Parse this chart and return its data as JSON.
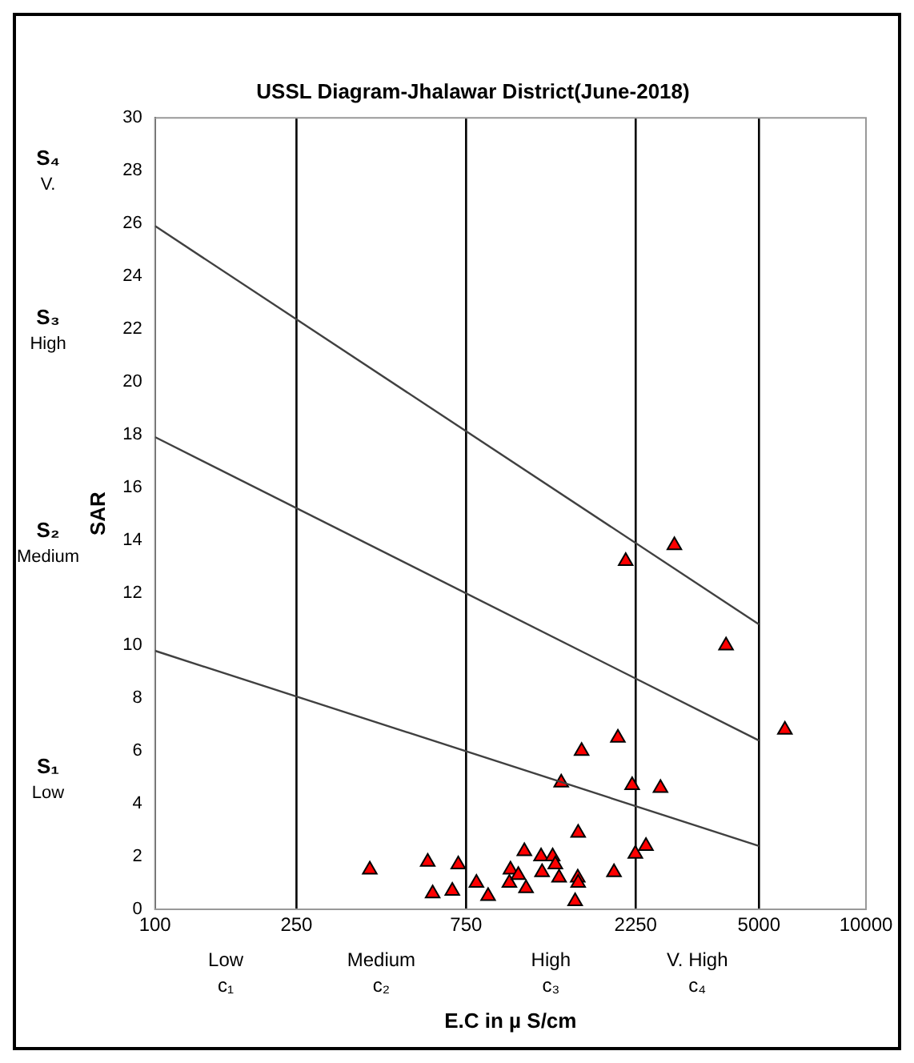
{
  "chart_data": {
    "type": "scatter",
    "title": "USSL Diagram-Jhalawar District(June-2018)",
    "xlabel": "E.C in µ S/cm",
    "ylabel": "SAR",
    "annotations": [
      "S₄ V.",
      "S₃ High",
      "S₂ Medium",
      "S₁ Low",
      "Low c₁",
      "Medium c₂",
      "High c₃",
      "V. High c₄"
    ],
    "log": "x",
    "xlim": [
      100,
      10000
    ],
    "xticks": [
      100,
      250,
      750,
      2250,
      5000,
      10000
    ],
    "ylim": [
      0,
      30
    ],
    "yticks": [
      0,
      2,
      4,
      6,
      8,
      10,
      12,
      14,
      16,
      18,
      20,
      22,
      24,
      26,
      28,
      30
    ],
    "ref_lines": [
      {
        "axis": "x",
        "value": 250,
        "color": "#000000"
      },
      {
        "axis": "x",
        "value": 750,
        "color": "#000000"
      },
      {
        "axis": "x",
        "value": 2250,
        "color": "#000000"
      },
      {
        "axis": "x",
        "value": 5000,
        "color": "#000000"
      }
    ],
    "series": [
      {
        "type": "line",
        "color": "#404040",
        "marker": "none",
        "x": [
          100,
          5000
        ],
        "values": [
          25.9,
          10.8
        ]
      },
      {
        "type": "line",
        "color": "#404040",
        "marker": "none",
        "x": [
          100,
          5000
        ],
        "values": [
          17.9,
          6.4
        ]
      },
      {
        "type": "line",
        "color": "#404040",
        "marker": "none",
        "x": [
          100,
          5000
        ],
        "values": [
          9.8,
          2.4
        ]
      },
      {
        "type": "scatter",
        "color": "#ff0000",
        "marker": "triangle",
        "x": [
          402,
          585,
          604,
          713,
          686,
          802,
          865,
          993,
          1000,
          1052,
          1094,
          1106,
          1219,
          1227,
          1314,
          1337,
          1370,
          1389,
          1520,
          1546,
          1550,
          1550,
          1585,
          1955,
          2005,
          2109,
          2199,
          2245,
          2405,
          2642,
          2891,
          4040,
          5914
        ],
        "values": [
          1.5,
          1.8,
          0.6,
          1.7,
          0.7,
          1.0,
          0.5,
          1.0,
          1.5,
          1.3,
          2.2,
          0.8,
          2.0,
          1.4,
          2.0,
          1.7,
          1.2,
          4.8,
          0.3,
          1.2,
          1.0,
          2.9,
          6.0,
          1.4,
          6.5,
          13.2,
          4.7,
          2.1,
          2.4,
          4.6,
          13.8,
          10.0,
          6.8
        ]
      }
    ]
  }
}
